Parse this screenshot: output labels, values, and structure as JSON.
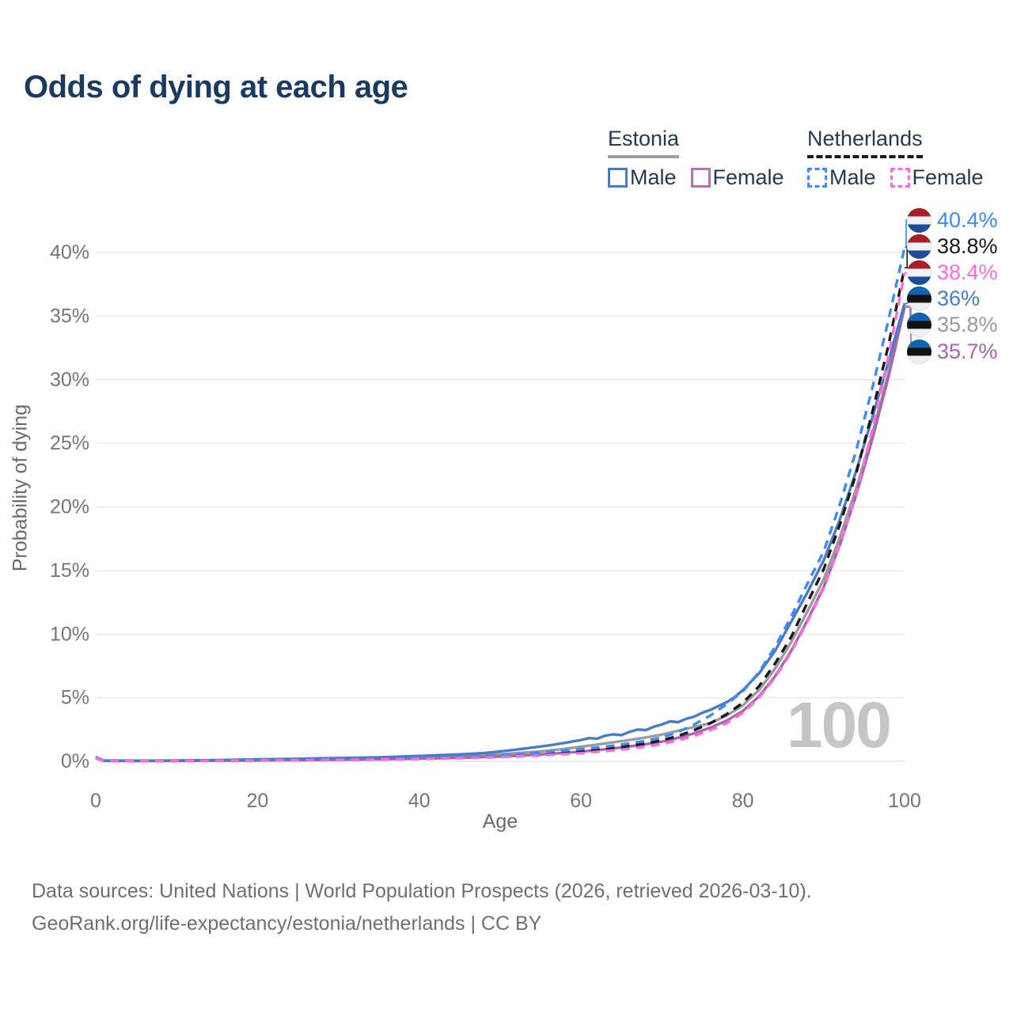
{
  "title": "Odds of dying at each age",
  "watermark": "100",
  "legend": {
    "groups": [
      {
        "name": "Estonia",
        "line_color": "#9e9e9e",
        "line_style": "solid",
        "items": [
          {
            "label": "Male",
            "color": "#4a7cc2",
            "dashed": false
          },
          {
            "label": "Female",
            "color": "#b173b1",
            "dashed": false
          }
        ]
      },
      {
        "name": "Netherlands",
        "line_color": "#1a1a1a",
        "line_style": "dashed",
        "items": [
          {
            "label": "Male",
            "color": "#4289f5",
            "dashed": true
          },
          {
            "label": "Female",
            "color": "#fa6fd7",
            "dashed": true
          }
        ]
      }
    ]
  },
  "chart_data": {
    "type": "line",
    "title": "Odds of dying at each age",
    "xlabel": "Age",
    "ylabel": "Probability of dying",
    "xlim": [
      0,
      100
    ],
    "ylim": [
      0,
      40
    ],
    "x_ticks": [
      0,
      20,
      40,
      60,
      80,
      100
    ],
    "y_ticks": [
      0,
      5,
      10,
      15,
      20,
      25,
      30,
      35,
      40
    ],
    "y_tick_suffix": "%",
    "grid": "horizontal",
    "legend_position": "top-right",
    "age_indicator": "100",
    "series": [
      {
        "id": "estonia-both",
        "name": "Estonia",
        "country": "Estonia",
        "sex": "both",
        "color": "#9b9b9b",
        "dashed": false,
        "flag": "ee",
        "end_label": "35.8%",
        "end_value": 35.8,
        "points": [
          [
            0,
            0.3
          ],
          [
            1,
            0.05
          ],
          [
            5,
            0.04
          ],
          [
            10,
            0.05
          ],
          [
            15,
            0.08
          ],
          [
            20,
            0.12
          ],
          [
            25,
            0.15
          ],
          [
            30,
            0.19
          ],
          [
            35,
            0.24
          ],
          [
            40,
            0.31
          ],
          [
            45,
            0.41
          ],
          [
            50,
            0.55
          ],
          [
            55,
            0.78
          ],
          [
            58,
            0.98
          ],
          [
            60,
            1.15
          ],
          [
            62,
            1.32
          ],
          [
            64,
            1.5
          ],
          [
            66,
            1.68
          ],
          [
            68,
            1.88
          ],
          [
            70,
            2.1
          ],
          [
            72,
            2.4
          ],
          [
            74,
            2.7
          ],
          [
            76,
            3.0
          ],
          [
            78,
            3.6
          ],
          [
            80,
            4.4
          ],
          [
            82,
            5.6
          ],
          [
            84,
            7.3
          ],
          [
            86,
            9.4
          ],
          [
            88,
            11.8
          ],
          [
            90,
            14.3
          ],
          [
            92,
            17.6
          ],
          [
            94,
            21.4
          ],
          [
            96,
            25.7
          ],
          [
            98,
            30.5
          ],
          [
            100,
            35.8
          ]
        ]
      },
      {
        "id": "estonia-female",
        "name": "Estonia Female",
        "country": "Estonia",
        "sex": "female",
        "color": "#a765ab",
        "dashed": false,
        "flag": "ee",
        "end_label": "35.7%",
        "end_value": 35.7,
        "points": [
          [
            0,
            0.25
          ],
          [
            1,
            0.04
          ],
          [
            5,
            0.03
          ],
          [
            10,
            0.04
          ],
          [
            15,
            0.05
          ],
          [
            20,
            0.07
          ],
          [
            25,
            0.09
          ],
          [
            30,
            0.12
          ],
          [
            35,
            0.16
          ],
          [
            40,
            0.21
          ],
          [
            45,
            0.28
          ],
          [
            50,
            0.38
          ],
          [
            55,
            0.54
          ],
          [
            60,
            0.76
          ],
          [
            65,
            1.08
          ],
          [
            68,
            1.35
          ],
          [
            70,
            1.55
          ],
          [
            72,
            1.85
          ],
          [
            74,
            2.2
          ],
          [
            76,
            2.65
          ],
          [
            78,
            3.2
          ],
          [
            80,
            3.95
          ],
          [
            82,
            5.1
          ],
          [
            84,
            6.7
          ],
          [
            86,
            8.7
          ],
          [
            88,
            11.1
          ],
          [
            90,
            13.7
          ],
          [
            92,
            17.0
          ],
          [
            94,
            20.9
          ],
          [
            96,
            25.3
          ],
          [
            98,
            30.2
          ],
          [
            100,
            35.7
          ]
        ]
      },
      {
        "id": "estonia-male",
        "name": "Estonia Male",
        "country": "Estonia",
        "sex": "male",
        "color": "#4a7cc2",
        "dashed": false,
        "flag": "ee",
        "end_label": "36%",
        "end_value": 36,
        "points": [
          [
            0,
            0.35
          ],
          [
            1,
            0.06
          ],
          [
            5,
            0.05
          ],
          [
            10,
            0.06
          ],
          [
            15,
            0.1
          ],
          [
            20,
            0.16
          ],
          [
            25,
            0.2
          ],
          [
            30,
            0.26
          ],
          [
            35,
            0.32
          ],
          [
            40,
            0.42
          ],
          [
            45,
            0.55
          ],
          [
            48,
            0.65
          ],
          [
            50,
            0.78
          ],
          [
            52,
            0.92
          ],
          [
            54,
            1.08
          ],
          [
            56,
            1.25
          ],
          [
            58,
            1.45
          ],
          [
            60,
            1.68
          ],
          [
            61,
            1.82
          ],
          [
            62,
            1.78
          ],
          [
            63,
            2.02
          ],
          [
            64,
            2.12
          ],
          [
            65,
            2.06
          ],
          [
            66,
            2.32
          ],
          [
            67,
            2.5
          ],
          [
            68,
            2.46
          ],
          [
            69,
            2.72
          ],
          [
            70,
            2.9
          ],
          [
            71,
            3.14
          ],
          [
            72,
            3.08
          ],
          [
            73,
            3.34
          ],
          [
            74,
            3.52
          ],
          [
            75,
            3.82
          ],
          [
            76,
            4.05
          ],
          [
            77,
            4.35
          ],
          [
            78,
            4.65
          ],
          [
            79,
            5.05
          ],
          [
            80,
            5.6
          ],
          [
            82,
            6.9
          ],
          [
            84,
            8.7
          ],
          [
            86,
            11.0
          ],
          [
            88,
            13.3
          ],
          [
            90,
            15.8
          ],
          [
            92,
            19.0
          ],
          [
            94,
            22.8
          ],
          [
            96,
            27.0
          ],
          [
            98,
            31.4
          ],
          [
            100,
            36.0
          ]
        ]
      },
      {
        "id": "netherlands-both",
        "name": "Netherlands",
        "country": "Netherlands",
        "sex": "both",
        "color": "#1a1a1a",
        "dashed": true,
        "flag": "nl",
        "end_label": "38.8%",
        "end_value": 38.8,
        "points": [
          [
            0,
            0.3
          ],
          [
            1,
            0.03
          ],
          [
            5,
            0.03
          ],
          [
            10,
            0.03
          ],
          [
            15,
            0.05
          ],
          [
            20,
            0.08
          ],
          [
            25,
            0.1
          ],
          [
            30,
            0.13
          ],
          [
            35,
            0.17
          ],
          [
            40,
            0.22
          ],
          [
            45,
            0.3
          ],
          [
            50,
            0.41
          ],
          [
            55,
            0.57
          ],
          [
            60,
            0.79
          ],
          [
            65,
            1.12
          ],
          [
            68,
            1.4
          ],
          [
            70,
            1.65
          ],
          [
            72,
            2.0
          ],
          [
            74,
            2.45
          ],
          [
            76,
            3.0
          ],
          [
            78,
            3.7
          ],
          [
            80,
            4.6
          ],
          [
            82,
            5.9
          ],
          [
            84,
            7.7
          ],
          [
            86,
            9.8
          ],
          [
            88,
            12.5
          ],
          [
            90,
            15.1
          ],
          [
            92,
            18.6
          ],
          [
            94,
            22.6
          ],
          [
            96,
            27.4
          ],
          [
            98,
            32.7
          ],
          [
            100,
            38.8
          ]
        ]
      },
      {
        "id": "netherlands-male",
        "name": "Netherlands Male",
        "country": "Netherlands",
        "sex": "male",
        "color": "#4289f5",
        "dashed": true,
        "flag": "nl",
        "end_label": "40.4%",
        "end_value": 40.4,
        "points": [
          [
            0,
            0.32
          ],
          [
            1,
            0.04
          ],
          [
            5,
            0.03
          ],
          [
            10,
            0.04
          ],
          [
            15,
            0.07
          ],
          [
            20,
            0.1
          ],
          [
            25,
            0.13
          ],
          [
            30,
            0.16
          ],
          [
            35,
            0.2
          ],
          [
            40,
            0.26
          ],
          [
            45,
            0.34
          ],
          [
            50,
            0.48
          ],
          [
            55,
            0.68
          ],
          [
            60,
            0.95
          ],
          [
            63,
            1.15
          ],
          [
            65,
            1.32
          ],
          [
            68,
            1.62
          ],
          [
            70,
            1.88
          ],
          [
            72,
            2.3
          ],
          [
            74,
            2.9
          ],
          [
            76,
            3.6
          ],
          [
            78,
            4.5
          ],
          [
            80,
            5.5
          ],
          [
            82,
            7.0
          ],
          [
            84,
            9.0
          ],
          [
            86,
            11.4
          ],
          [
            88,
            14.0
          ],
          [
            90,
            16.5
          ],
          [
            92,
            20.2
          ],
          [
            94,
            24.4
          ],
          [
            96,
            29.3
          ],
          [
            98,
            34.7
          ],
          [
            100,
            40.4
          ]
        ]
      },
      {
        "id": "netherlands-female",
        "name": "Netherlands Female",
        "country": "Netherlands",
        "sex": "female",
        "color": "#fa6fd7",
        "dashed": true,
        "flag": "nl",
        "end_label": "38.4%",
        "end_value": 38.4,
        "points": [
          [
            0,
            0.28
          ],
          [
            1,
            0.02
          ],
          [
            5,
            0.02
          ],
          [
            10,
            0.03
          ],
          [
            15,
            0.04
          ],
          [
            20,
            0.06
          ],
          [
            25,
            0.08
          ],
          [
            30,
            0.1
          ],
          [
            35,
            0.13
          ],
          [
            40,
            0.18
          ],
          [
            45,
            0.24
          ],
          [
            50,
            0.33
          ],
          [
            55,
            0.46
          ],
          [
            60,
            0.64
          ],
          [
            65,
            0.92
          ],
          [
            68,
            1.15
          ],
          [
            70,
            1.35
          ],
          [
            72,
            1.65
          ],
          [
            74,
            2.0
          ],
          [
            76,
            2.45
          ],
          [
            78,
            3.0
          ],
          [
            80,
            3.8
          ],
          [
            82,
            5.0
          ],
          [
            84,
            6.6
          ],
          [
            86,
            8.6
          ],
          [
            88,
            11.0
          ],
          [
            90,
            13.6
          ],
          [
            92,
            17.0
          ],
          [
            94,
            21.0
          ],
          [
            96,
            26.0
          ],
          [
            98,
            31.8
          ],
          [
            100,
            38.4
          ]
        ]
      }
    ]
  },
  "source": {
    "line1": "Data sources: United Nations | World Population Prospects (2026, retrieved 2026-03-10).",
    "line2": "GeoRank.org/life-expectancy/estonia/netherlands | CC BY"
  }
}
